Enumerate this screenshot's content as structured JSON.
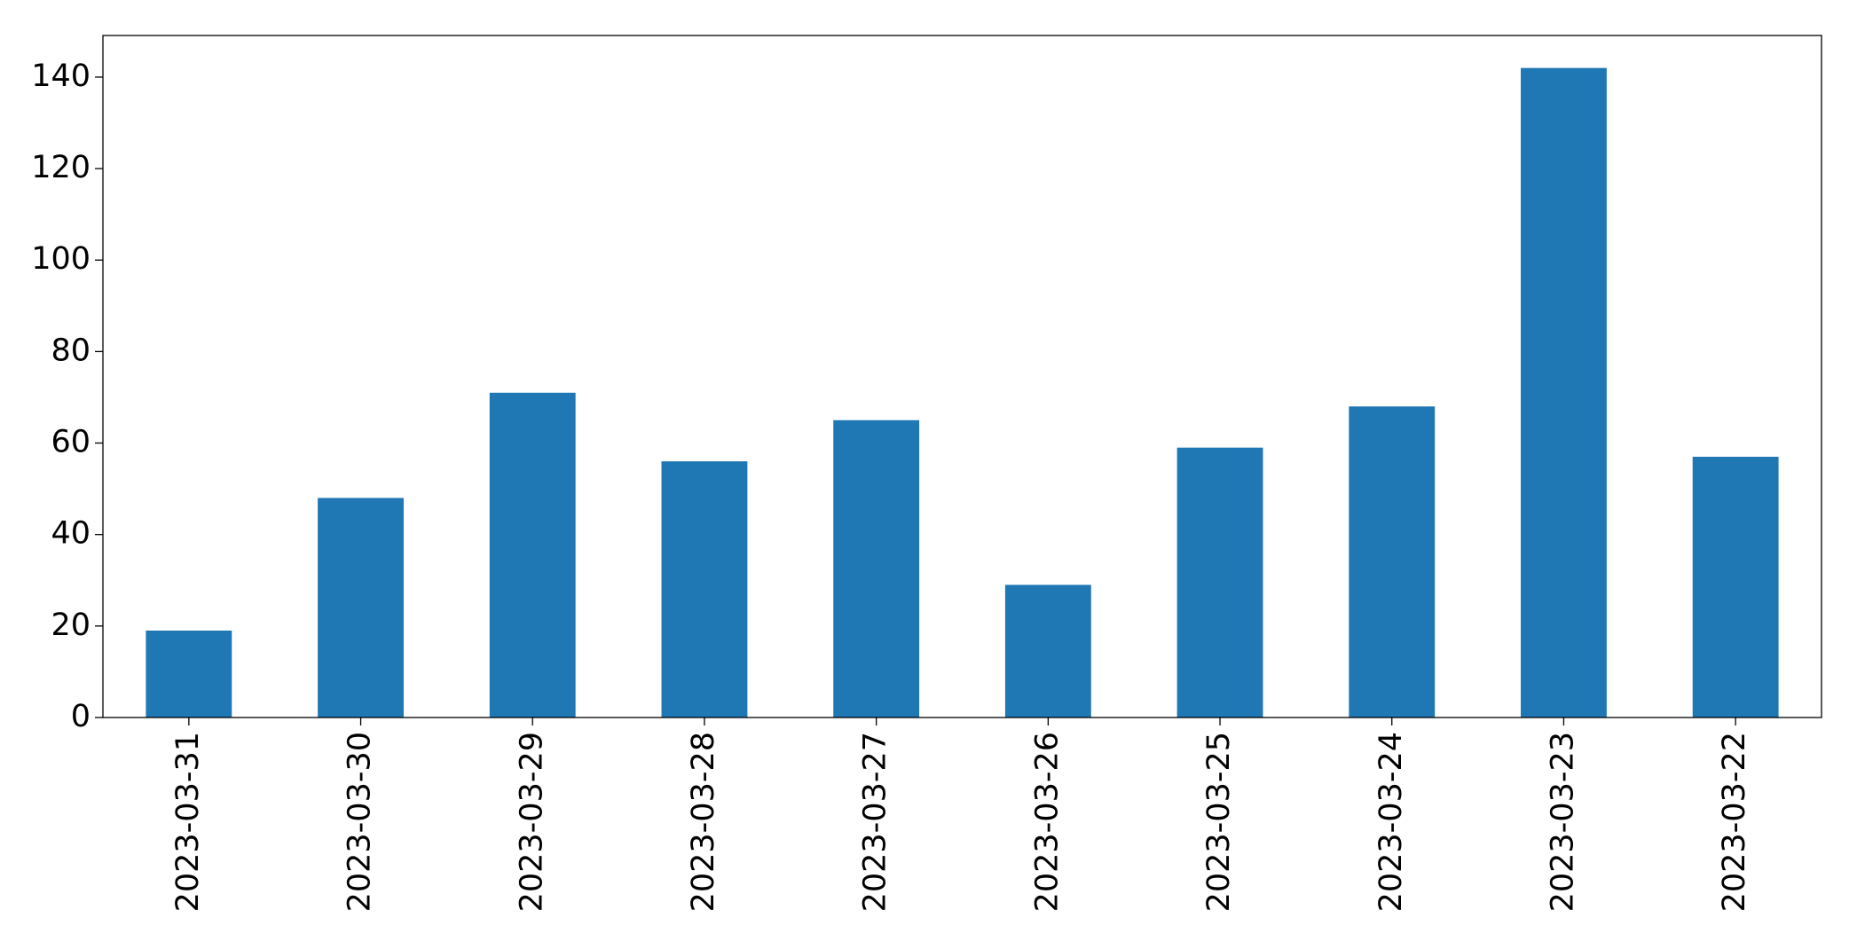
{
  "chart_data": {
    "type": "bar",
    "categories": [
      "2023-03-31",
      "2023-03-30",
      "2023-03-29",
      "2023-03-28",
      "2023-03-27",
      "2023-03-26",
      "2023-03-25",
      "2023-03-24",
      "2023-03-23",
      "2023-03-22"
    ],
    "values": [
      19,
      48,
      71,
      56,
      65,
      29,
      59,
      68,
      142,
      57
    ],
    "color": "#1f77b4",
    "ylim": [
      0,
      149.1
    ],
    "yticks": [
      0,
      20,
      40,
      60,
      80,
      100,
      120,
      140
    ]
  }
}
